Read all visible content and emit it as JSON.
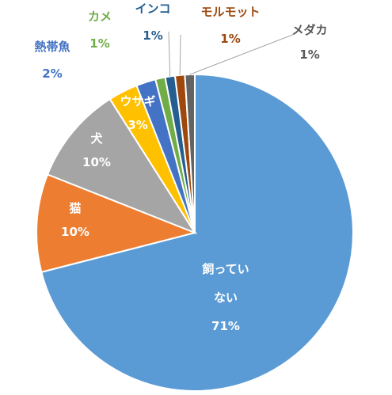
{
  "chart_data": {
    "type": "pie",
    "title": "",
    "slices": [
      {
        "label": "飼っていない",
        "label_lines": [
          "飼ってい",
          "ない"
        ],
        "value_label": "71%",
        "value": 71,
        "color": "#5B9BD5",
        "label_color": "#ffffff"
      },
      {
        "label": "猫",
        "label_lines": [
          "猫"
        ],
        "value_label": "10%",
        "value": 10,
        "color": "#ED7D31",
        "label_color": "#ffffff"
      },
      {
        "label": "犬",
        "label_lines": [
          "犬"
        ],
        "value_label": "10%",
        "value": 10,
        "color": "#A5A5A5",
        "label_color": "#ffffff"
      },
      {
        "label": "ウサギ",
        "label_lines": [
          "ウサギ"
        ],
        "value_label": "3%",
        "value": 3,
        "color": "#FFC000",
        "label_color": "#ffffff"
      },
      {
        "label": "熱帯魚",
        "label_lines": [
          "熱帯魚"
        ],
        "value_label": "2%",
        "value": 2,
        "color": "#4472C4",
        "label_color": "#4472C4"
      },
      {
        "label": "カメ",
        "label_lines": [
          "カメ"
        ],
        "value_label": "1%",
        "value": 1,
        "color": "#70AD47",
        "label_color": "#70AD47"
      },
      {
        "label": "インコ",
        "label_lines": [
          "インコ"
        ],
        "value_label": "1%",
        "value": 1,
        "color": "#255E91",
        "label_color": "#255E91"
      },
      {
        "label": "モルモット",
        "label_lines": [
          "モルモット"
        ],
        "value_label": "1%",
        "value": 1,
        "color": "#9E480E",
        "label_color": "#9E480E"
      },
      {
        "label": "メダカ",
        "label_lines": [
          "メダカ"
        ],
        "value_label": "1%",
        "value": 1,
        "color": "#636363",
        "label_color": "#595959"
      }
    ]
  }
}
